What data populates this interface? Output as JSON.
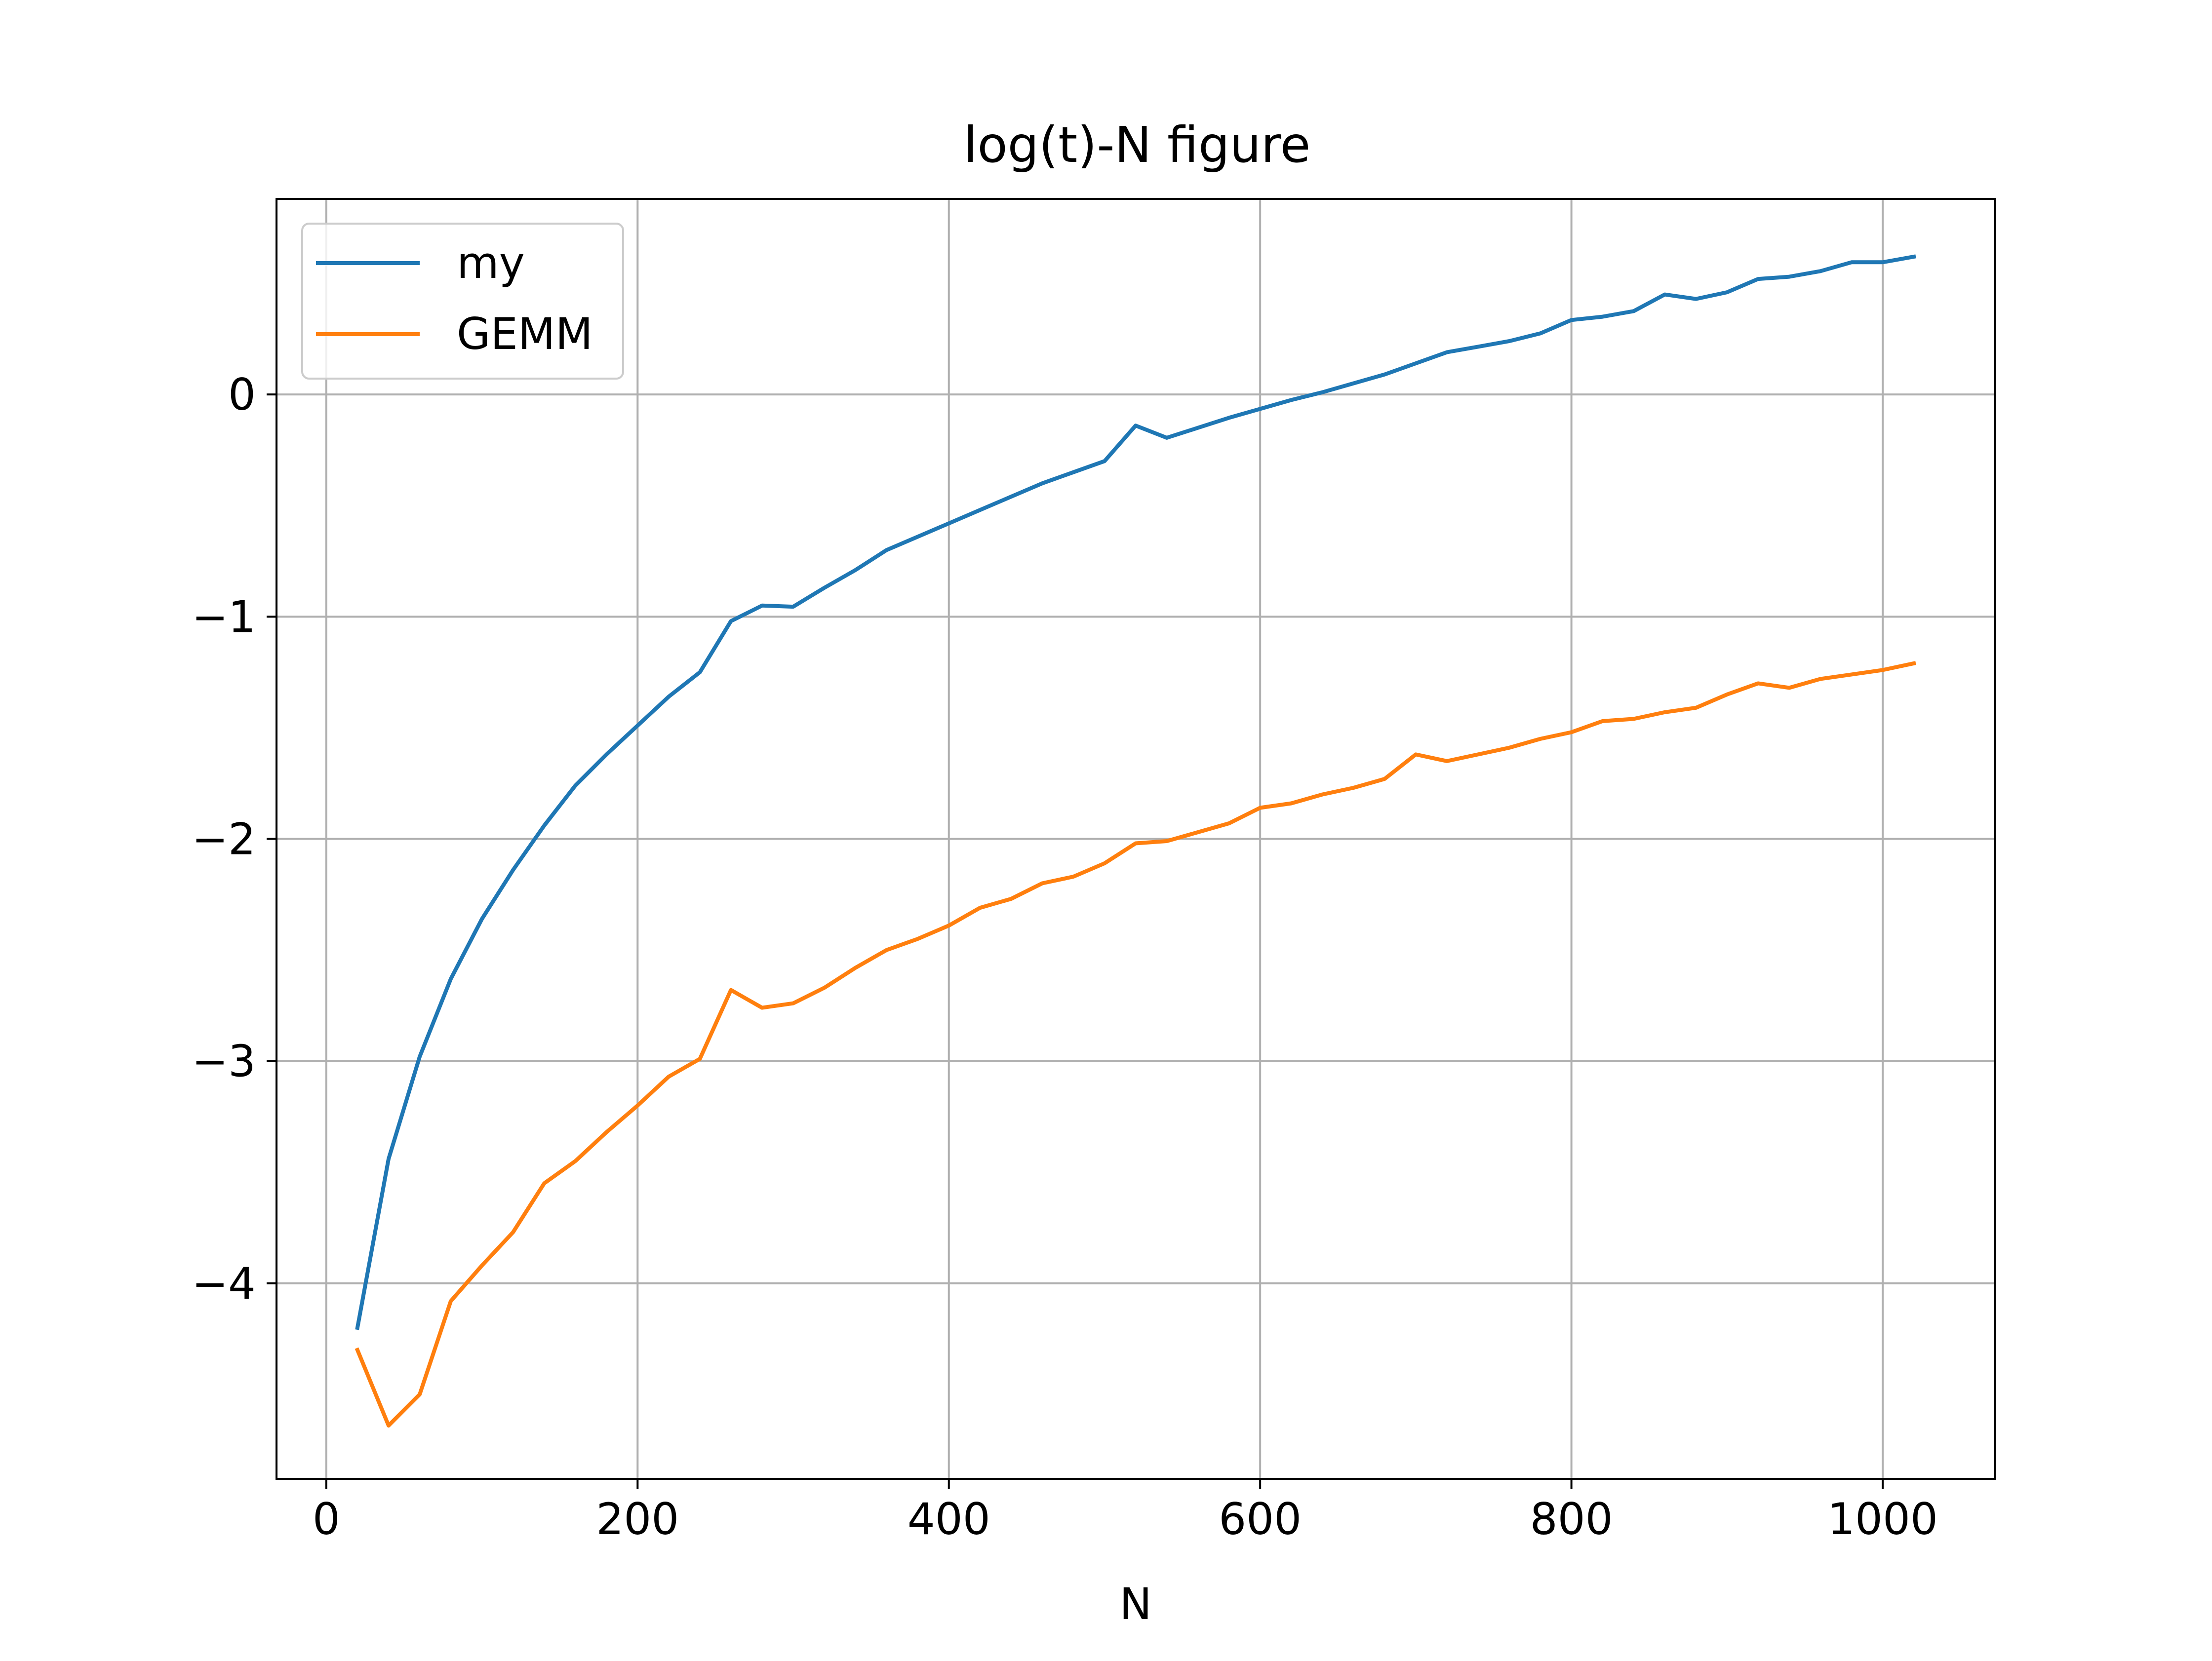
{
  "chart_data": {
    "type": "line",
    "title": "log(t)-N figure",
    "xlabel": "N",
    "ylabel": "",
    "xlim": [
      -32,
      1072
    ],
    "ylim": [
      -4.88,
      0.88
    ],
    "xticks": [
      0,
      200,
      400,
      600,
      800,
      1000
    ],
    "xtick_labels": [
      "0",
      "200",
      "400",
      "600",
      "800",
      "1000"
    ],
    "yticks": [
      0,
      -1,
      -2,
      -3,
      -4
    ],
    "ytick_labels": [
      "0",
      "−1",
      "−2",
      "−3",
      "−4"
    ],
    "grid": true,
    "legend_position": "top-left",
    "colors": {
      "my": "#1f77b4",
      "GEMM": "#ff7f0e",
      "grid": "#b0b0b0"
    },
    "x": [
      20,
      40,
      60,
      80,
      100,
      120,
      140,
      160,
      180,
      200,
      220,
      240,
      260,
      280,
      300,
      320,
      340,
      360,
      380,
      400,
      420,
      440,
      460,
      480,
      500,
      520,
      540,
      560,
      580,
      600,
      620,
      640,
      660,
      680,
      700,
      720,
      740,
      760,
      780,
      800,
      820,
      840,
      860,
      880,
      900,
      920,
      940,
      960,
      980,
      1000,
      1020
    ],
    "series": [
      {
        "name": "my",
        "values": [
          -4.2,
          -3.44,
          -2.98,
          -2.63,
          -2.36,
          -2.14,
          -1.94,
          -1.76,
          -1.62,
          -1.49,
          -1.36,
          -1.25,
          -1.02,
          -0.95,
          -0.955,
          -0.87,
          -0.79,
          -0.7,
          -0.64,
          -0.58,
          -0.52,
          -0.46,
          -0.4,
          -0.35,
          -0.3,
          -0.14,
          -0.195,
          -0.15,
          -0.105,
          -0.065,
          -0.025,
          0.01,
          0.05,
          0.09,
          0.14,
          0.19,
          0.215,
          0.24,
          0.275,
          0.335,
          0.35,
          0.375,
          0.45,
          0.43,
          0.46,
          0.52,
          0.53,
          0.555,
          0.595,
          0.595,
          0.62
        ]
      },
      {
        "name": "GEMM",
        "values": [
          -4.3,
          -4.64,
          -4.5,
          -4.08,
          -3.92,
          -3.77,
          -3.55,
          -3.45,
          -3.32,
          -3.2,
          -3.07,
          -2.99,
          -2.68,
          -2.76,
          -2.74,
          -2.67,
          -2.58,
          -2.5,
          -2.45,
          -2.39,
          -2.31,
          -2.27,
          -2.2,
          -2.17,
          -2.11,
          -2.02,
          -2.01,
          -1.97,
          -1.93,
          -1.86,
          -1.84,
          -1.8,
          -1.77,
          -1.73,
          -1.62,
          -1.65,
          -1.62,
          -1.59,
          -1.55,
          -1.52,
          -1.47,
          -1.46,
          -1.43,
          -1.41,
          -1.35,
          -1.3,
          -1.32,
          -1.28,
          -1.26,
          -1.24,
          -1.21
        ]
      }
    ]
  }
}
